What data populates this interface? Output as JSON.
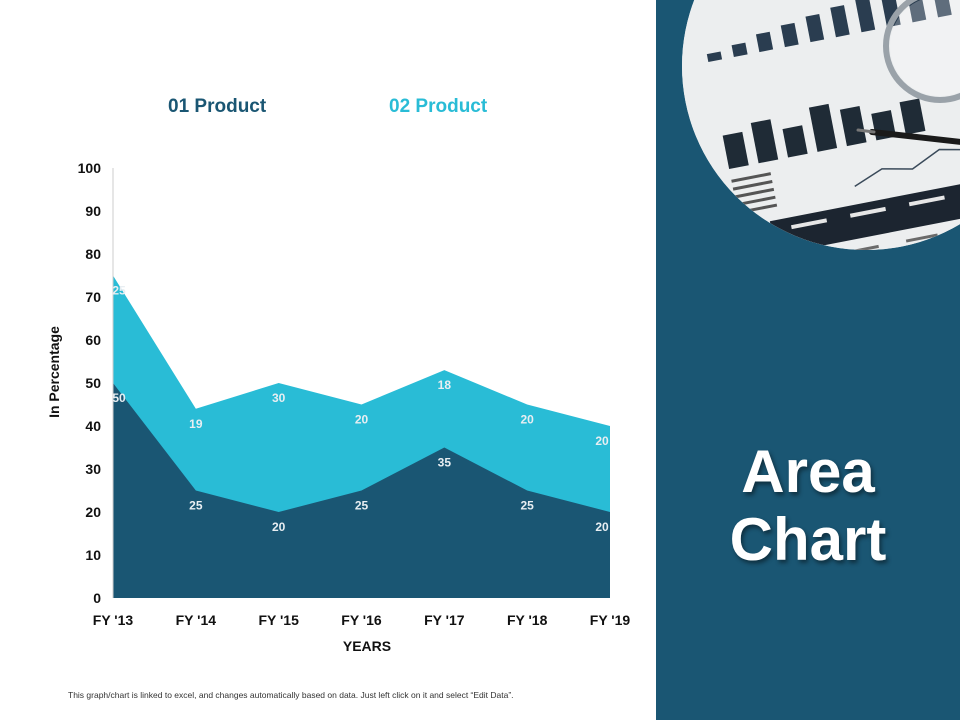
{
  "chart_data": {
    "type": "area",
    "stacked": true,
    "categories": [
      "FY '13",
      "FY '14",
      "FY '15",
      "FY '16",
      "FY '17",
      "FY '18",
      "FY '19"
    ],
    "series": [
      {
        "name": "01 Product",
        "values": [
          50,
          25,
          20,
          25,
          35,
          25,
          20
        ],
        "color": "#1a5673"
      },
      {
        "name": "02 Product",
        "values": [
          25,
          19,
          30,
          20,
          18,
          20,
          20
        ],
        "color": "#29bcd6"
      }
    ],
    "ylim": [
      0,
      100
    ],
    "yticks": [
      0,
      10,
      20,
      30,
      40,
      50,
      60,
      70,
      80,
      90,
      100
    ],
    "xlabel": "YEARS",
    "ylabel": "In Percentage",
    "legend_position": "top",
    "grid": false,
    "data_labels": true
  },
  "footnote": "This graph/chart is linked to excel, and changes automatically based on data. Just left click on it and select “Edit Data”.",
  "panel": {
    "title_line1": "Area",
    "title_line2": "Chart",
    "background_color": "#1a5673"
  }
}
